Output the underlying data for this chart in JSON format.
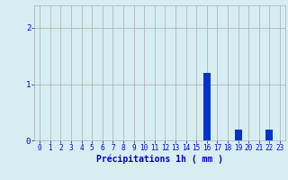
{
  "hours": [
    0,
    1,
    2,
    3,
    4,
    5,
    6,
    7,
    8,
    9,
    10,
    11,
    12,
    13,
    14,
    15,
    16,
    17,
    18,
    19,
    20,
    21,
    22,
    23
  ],
  "values": [
    0,
    0,
    0,
    0,
    0,
    0,
    0,
    0,
    0,
    0,
    0,
    0,
    0,
    0,
    0,
    0,
    1.2,
    0,
    0,
    0.2,
    0,
    0,
    0.2,
    0
  ],
  "bar_color": "#0033cc",
  "background_color": "#d6eef2",
  "grid_color": "#aaaaaa",
  "axis_color": "#0000cc",
  "xlabel": "Précipitations 1h ( mm )",
  "xlabel_fontsize": 7,
  "tick_fontsize": 5.5,
  "ylabel_ticks": [
    0,
    1,
    2
  ],
  "ylim": [
    0,
    2.4
  ],
  "xlim": [
    -0.5,
    23.5
  ]
}
